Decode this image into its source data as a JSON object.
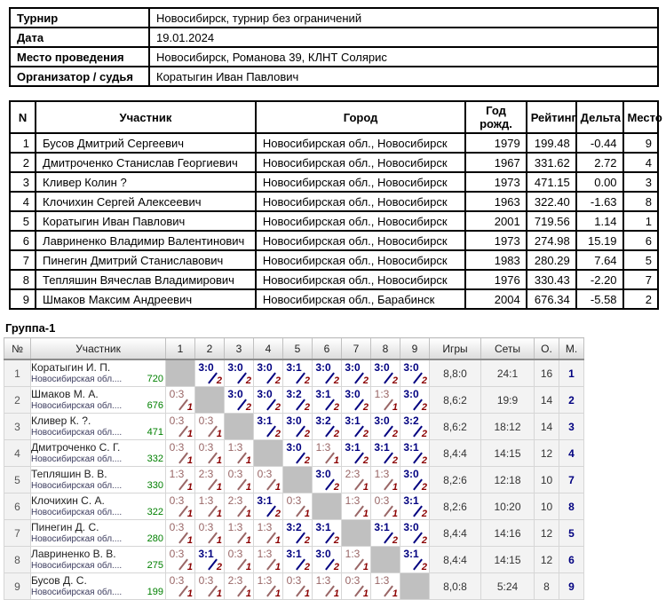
{
  "info": {
    "rows": [
      {
        "label": "Турнир",
        "value": "Новосибирск, турнир без ограничений"
      },
      {
        "label": "Дата",
        "value": "19.01.2024"
      },
      {
        "label": "Место проведения",
        "value": "Новосибирск, Романова 39, КЛНТ Солярис"
      },
      {
        "label": "Организатор / судья",
        "value": "Коратыгин Иван Павлович"
      }
    ]
  },
  "participants": {
    "headers": [
      "N",
      "Участник",
      "Город",
      "Год рожд.",
      "Рейтинг",
      "Дельта",
      "Место"
    ],
    "rows": [
      [
        "1",
        "Бусов Дмитрий Сергеевич",
        "Новосибирская обл., Новосибирск",
        "1979",
        "199.48",
        "-0.44",
        "9"
      ],
      [
        "2",
        "Дмитроченко Станислав Георгиевич",
        "Новосибирская обл., Новосибирск",
        "1967",
        "331.62",
        "2.72",
        "4"
      ],
      [
        "3",
        "Кливер Колин ?",
        "Новосибирская обл., Новосибирск",
        "1973",
        "471.15",
        "0.00",
        "3"
      ],
      [
        "4",
        "Клочихин Сергей Алексеевич",
        "Новосибирская обл., Новосибирск",
        "1963",
        "322.40",
        "-1.63",
        "8"
      ],
      [
        "5",
        "Коратыгин Иван Павлович",
        "Новосибирская обл., Новосибирск",
        "2001",
        "719.56",
        "1.14",
        "1"
      ],
      [
        "6",
        "Лавриненко Владимир Валентинович",
        "Новосибирская обл., Новосибирск",
        "1973",
        "274.98",
        "15.19",
        "6"
      ],
      [
        "7",
        "Пинегин Дмитрий Станиславович",
        "Новосибирская обл., Новосибирск",
        "1983",
        "280.29",
        "7.64",
        "5"
      ],
      [
        "8",
        "Тепляшин Вячеслав Владимирович",
        "Новосибирская обл., Новосибирск",
        "1976",
        "330.43",
        "-2.20",
        "7"
      ],
      [
        "9",
        "Шмаков Максим Андреевич",
        "Новосибирская обл., Барабинск",
        "2004",
        "676.34",
        "-5.58",
        "2"
      ]
    ]
  },
  "group": {
    "title": "Группа-1",
    "headers": [
      "№",
      "Участник",
      "1",
      "2",
      "3",
      "4",
      "5",
      "6",
      "7",
      "8",
      "9",
      "Игры",
      "Сеты",
      "О.",
      "М."
    ],
    "rows": [
      {
        "num": "1",
        "name": "Коратыгин И. П.",
        "region": "Новосибирская обл....",
        "rating": "720",
        "cells": [
          null,
          {
            "score": "3:0",
            "pts": "2",
            "win": true
          },
          {
            "score": "3:0",
            "pts": "2",
            "win": true
          },
          {
            "score": "3:0",
            "pts": "2",
            "win": true
          },
          {
            "score": "3:1",
            "pts": "2",
            "win": true
          },
          {
            "score": "3:0",
            "pts": "2",
            "win": true
          },
          {
            "score": "3:0",
            "pts": "2",
            "win": true
          },
          {
            "score": "3:0",
            "pts": "2",
            "win": true
          },
          {
            "score": "3:0",
            "pts": "2",
            "win": true
          }
        ],
        "games": "8,8:0",
        "sets": "24:1",
        "points": "16",
        "place": "1"
      },
      {
        "num": "2",
        "name": "Шмаков М. А.",
        "region": "Новосибирская обл....",
        "rating": "676",
        "cells": [
          {
            "score": "0:3",
            "pts": "1",
            "win": false
          },
          null,
          {
            "score": "3:0",
            "pts": "2",
            "win": true
          },
          {
            "score": "3:0",
            "pts": "2",
            "win": true
          },
          {
            "score": "3:2",
            "pts": "2",
            "win": true
          },
          {
            "score": "3:1",
            "pts": "2",
            "win": true
          },
          {
            "score": "3:0",
            "pts": "2",
            "win": true
          },
          {
            "score": "1:3",
            "pts": "1",
            "win": false
          },
          {
            "score": "3:0",
            "pts": "2",
            "win": true
          }
        ],
        "games": "8,6:2",
        "sets": "19:9",
        "points": "14",
        "place": "2"
      },
      {
        "num": "3",
        "name": "Кливер К. ?.",
        "region": "Новосибирская обл....",
        "rating": "471",
        "cells": [
          {
            "score": "0:3",
            "pts": "1",
            "win": false
          },
          {
            "score": "0:3",
            "pts": "1",
            "win": false
          },
          null,
          {
            "score": "3:1",
            "pts": "2",
            "win": true
          },
          {
            "score": "3:0",
            "pts": "2",
            "win": true
          },
          {
            "score": "3:2",
            "pts": "2",
            "win": true
          },
          {
            "score": "3:1",
            "pts": "2",
            "win": true
          },
          {
            "score": "3:0",
            "pts": "2",
            "win": true
          },
          {
            "score": "3:2",
            "pts": "2",
            "win": true
          }
        ],
        "games": "8,6:2",
        "sets": "18:12",
        "points": "14",
        "place": "3"
      },
      {
        "num": "4",
        "name": "Дмитроченко С. Г.",
        "region": "Новосибирская обл....",
        "rating": "332",
        "cells": [
          {
            "score": "0:3",
            "pts": "1",
            "win": false
          },
          {
            "score": "0:3",
            "pts": "1",
            "win": false
          },
          {
            "score": "1:3",
            "pts": "1",
            "win": false
          },
          null,
          {
            "score": "3:0",
            "pts": "2",
            "win": true
          },
          {
            "score": "1:3",
            "pts": "1",
            "win": false
          },
          {
            "score": "3:1",
            "pts": "2",
            "win": true
          },
          {
            "score": "3:1",
            "pts": "2",
            "win": true
          },
          {
            "score": "3:1",
            "pts": "2",
            "win": true
          }
        ],
        "games": "8,4:4",
        "sets": "14:15",
        "points": "12",
        "place": "4"
      },
      {
        "num": "5",
        "name": "Тепляшин В. В.",
        "region": "Новосибирская обл....",
        "rating": "330",
        "cells": [
          {
            "score": "1:3",
            "pts": "1",
            "win": false
          },
          {
            "score": "2:3",
            "pts": "1",
            "win": false
          },
          {
            "score": "0:3",
            "pts": "1",
            "win": false
          },
          {
            "score": "0:3",
            "pts": "1",
            "win": false
          },
          null,
          {
            "score": "3:0",
            "pts": "2",
            "win": true
          },
          {
            "score": "2:3",
            "pts": "1",
            "win": false
          },
          {
            "score": "1:3",
            "pts": "1",
            "win": false
          },
          {
            "score": "3:0",
            "pts": "2",
            "win": true
          }
        ],
        "games": "8,2:6",
        "sets": "12:18",
        "points": "10",
        "place": "7"
      },
      {
        "num": "6",
        "name": "Клочихин С. А.",
        "region": "Новосибирская обл....",
        "rating": "322",
        "cells": [
          {
            "score": "0:3",
            "pts": "1",
            "win": false
          },
          {
            "score": "1:3",
            "pts": "1",
            "win": false
          },
          {
            "score": "2:3",
            "pts": "1",
            "win": false
          },
          {
            "score": "3:1",
            "pts": "2",
            "win": true
          },
          {
            "score": "0:3",
            "pts": "1",
            "win": false
          },
          null,
          {
            "score": "1:3",
            "pts": "1",
            "win": false
          },
          {
            "score": "0:3",
            "pts": "1",
            "win": false
          },
          {
            "score": "3:1",
            "pts": "2",
            "win": true
          }
        ],
        "games": "8,2:6",
        "sets": "10:20",
        "points": "10",
        "place": "8"
      },
      {
        "num": "7",
        "name": "Пинегин Д. С.",
        "region": "Новосибирская обл....",
        "rating": "280",
        "cells": [
          {
            "score": "0:3",
            "pts": "1",
            "win": false
          },
          {
            "score": "0:3",
            "pts": "1",
            "win": false
          },
          {
            "score": "1:3",
            "pts": "1",
            "win": false
          },
          {
            "score": "1:3",
            "pts": "1",
            "win": false
          },
          {
            "score": "3:2",
            "pts": "2",
            "win": true
          },
          {
            "score": "3:1",
            "pts": "2",
            "win": true
          },
          null,
          {
            "score": "3:1",
            "pts": "2",
            "win": true
          },
          {
            "score": "3:0",
            "pts": "2",
            "win": true
          }
        ],
        "games": "8,4:4",
        "sets": "14:16",
        "points": "12",
        "place": "5"
      },
      {
        "num": "8",
        "name": "Лавриненко В. В.",
        "region": "Новосибирская обл....",
        "rating": "275",
        "cells": [
          {
            "score": "0:3",
            "pts": "1",
            "win": false
          },
          {
            "score": "3:1",
            "pts": "2",
            "win": true
          },
          {
            "score": "0:3",
            "pts": "1",
            "win": false
          },
          {
            "score": "1:3",
            "pts": "1",
            "win": false
          },
          {
            "score": "3:1",
            "pts": "2",
            "win": true
          },
          {
            "score": "3:0",
            "pts": "2",
            "win": true
          },
          {
            "score": "1:3",
            "pts": "1",
            "win": false
          },
          null,
          {
            "score": "3:1",
            "pts": "2",
            "win": true
          }
        ],
        "games": "8,4:4",
        "sets": "14:15",
        "points": "12",
        "place": "6"
      },
      {
        "num": "9",
        "name": "Бусов Д. С.",
        "region": "Новосибирская обл....",
        "rating": "199",
        "cells": [
          {
            "score": "0:3",
            "pts": "1",
            "win": false
          },
          {
            "score": "0:3",
            "pts": "1",
            "win": false
          },
          {
            "score": "2:3",
            "pts": "1",
            "win": false
          },
          {
            "score": "1:3",
            "pts": "1",
            "win": false
          },
          {
            "score": "0:3",
            "pts": "1",
            "win": false
          },
          {
            "score": "1:3",
            "pts": "1",
            "win": false
          },
          {
            "score": "0:3",
            "pts": "1",
            "win": false
          },
          {
            "score": "1:3",
            "pts": "1",
            "win": false
          },
          null
        ],
        "games": "8,0:8",
        "sets": "5:24",
        "points": "8",
        "place": "9"
      }
    ]
  },
  "colors": {
    "win_score": "#000080",
    "loss_score": "#996666",
    "points": "#8b0000",
    "rating_green": "#008000",
    "self_cell_gray": "#c0c0c0",
    "stat_cell_bg": "#f3f3f3"
  }
}
